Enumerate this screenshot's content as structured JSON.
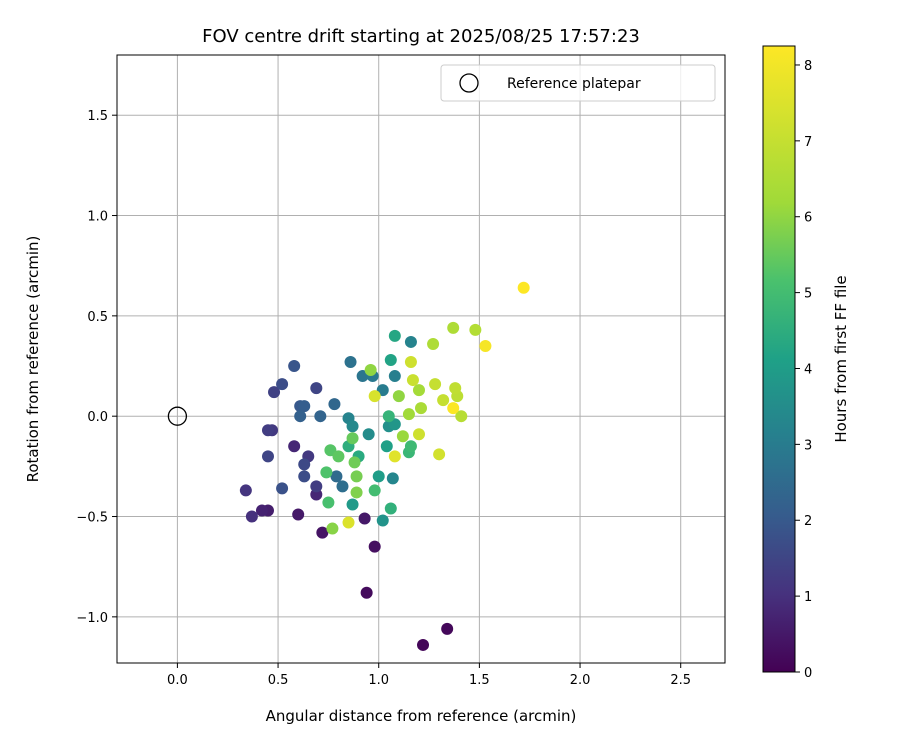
{
  "chart_data": {
    "type": "scatter",
    "title": "FOV centre drift starting at 2025/08/25 17:57:23",
    "xlabel": "Angular distance from reference (arcmin)",
    "ylabel": "Rotation from reference (arcmin)",
    "xlim": [
      -0.3,
      2.72
    ],
    "ylim": [
      -1.23,
      1.8
    ],
    "xticks": [
      0.0,
      0.5,
      1.0,
      1.5,
      2.0,
      2.5
    ],
    "xtick_labels": [
      "0.0",
      "0.5",
      "1.0",
      "1.5",
      "2.0",
      "2.5"
    ],
    "yticks": [
      -1.0,
      -0.5,
      0.0,
      0.5,
      1.0,
      1.5
    ],
    "ytick_labels": [
      "−1.0",
      "−0.5",
      "0.0",
      "0.5",
      "1.0",
      "1.5"
    ],
    "grid": true,
    "legend": {
      "position": "top-right",
      "entries": [
        "Reference platepar"
      ]
    },
    "reference_point": {
      "x": 0.0,
      "y": 0.0,
      "marker": "open-circle"
    },
    "colorbar": {
      "label": "Hours from first FF file",
      "min": 0,
      "max": 8.25,
      "colormap": "viridis",
      "ticks": [
        0,
        1,
        2,
        3,
        4,
        5,
        6,
        7,
        8
      ],
      "tick_labels": [
        "0",
        "1",
        "2",
        "3",
        "4",
        "5",
        "6",
        "7",
        "8"
      ]
    },
    "points": [
      {
        "x": 1.22,
        "y": -1.14,
        "h": 0.1
      },
      {
        "x": 1.34,
        "y": -1.06,
        "h": 0.15
      },
      {
        "x": 0.94,
        "y": -0.88,
        "h": 0.2
      },
      {
        "x": 0.98,
        "y": -0.65,
        "h": 0.3
      },
      {
        "x": 0.72,
        "y": -0.58,
        "h": 0.4
      },
      {
        "x": 0.93,
        "y": -0.51,
        "h": 0.5
      },
      {
        "x": 0.6,
        "y": -0.49,
        "h": 0.5
      },
      {
        "x": 0.45,
        "y": -0.47,
        "h": 0.6
      },
      {
        "x": 0.42,
        "y": -0.47,
        "h": 0.7
      },
      {
        "x": 0.69,
        "y": -0.39,
        "h": 0.8
      },
      {
        "x": 0.58,
        "y": -0.15,
        "h": 0.8
      },
      {
        "x": 0.37,
        "y": -0.5,
        "h": 1.0
      },
      {
        "x": 0.34,
        "y": -0.37,
        "h": 1.1
      },
      {
        "x": 0.47,
        "y": -0.07,
        "h": 1.2
      },
      {
        "x": 0.45,
        "y": -0.07,
        "h": 1.3
      },
      {
        "x": 0.48,
        "y": 0.12,
        "h": 1.4
      },
      {
        "x": 0.69,
        "y": 0.14,
        "h": 1.5
      },
      {
        "x": 0.69,
        "y": -0.35,
        "h": 1.3
      },
      {
        "x": 0.65,
        "y": -0.2,
        "h": 1.2
      },
      {
        "x": 0.45,
        "y": -0.2,
        "h": 1.5
      },
      {
        "x": 0.63,
        "y": -0.24,
        "h": 1.6
      },
      {
        "x": 0.63,
        "y": -0.3,
        "h": 1.7
      },
      {
        "x": 0.52,
        "y": -0.36,
        "h": 1.8
      },
      {
        "x": 0.52,
        "y": 0.16,
        "h": 1.7
      },
      {
        "x": 0.58,
        "y": 0.25,
        "h": 1.9
      },
      {
        "x": 0.61,
        "y": 0.05,
        "h": 2.0
      },
      {
        "x": 0.63,
        "y": 0.05,
        "h": 2.1
      },
      {
        "x": 0.61,
        "y": 0.0,
        "h": 2.2
      },
      {
        "x": 0.71,
        "y": 0.0,
        "h": 2.3
      },
      {
        "x": 0.78,
        "y": 0.06,
        "h": 2.4
      },
      {
        "x": 0.79,
        "y": -0.3,
        "h": 2.5
      },
      {
        "x": 0.82,
        "y": -0.35,
        "h": 2.6
      },
      {
        "x": 0.86,
        "y": 0.27,
        "h": 2.7
      },
      {
        "x": 0.92,
        "y": 0.2,
        "h": 2.8
      },
      {
        "x": 0.97,
        "y": 0.2,
        "h": 2.9
      },
      {
        "x": 1.02,
        "y": 0.13,
        "h": 3.0
      },
      {
        "x": 1.08,
        "y": 0.2,
        "h": 3.1
      },
      {
        "x": 1.16,
        "y": 0.37,
        "h": 3.2
      },
      {
        "x": 0.85,
        "y": -0.01,
        "h": 3.2
      },
      {
        "x": 1.07,
        "y": -0.31,
        "h": 3.3
      },
      {
        "x": 0.87,
        "y": -0.05,
        "h": 3.4
      },
      {
        "x": 0.95,
        "y": -0.09,
        "h": 3.5
      },
      {
        "x": 1.05,
        "y": -0.05,
        "h": 3.6
      },
      {
        "x": 1.02,
        "y": -0.52,
        "h": 3.7
      },
      {
        "x": 1.08,
        "y": -0.04,
        "h": 3.8
      },
      {
        "x": 0.87,
        "y": -0.44,
        "h": 3.9
      },
      {
        "x": 1.0,
        "y": -0.3,
        "h": 4.0
      },
      {
        "x": 1.04,
        "y": -0.15,
        "h": 4.1
      },
      {
        "x": 1.06,
        "y": 0.28,
        "h": 4.2
      },
      {
        "x": 1.08,
        "y": 0.4,
        "h": 4.3
      },
      {
        "x": 0.9,
        "y": -0.2,
        "h": 4.4
      },
      {
        "x": 0.85,
        "y": -0.15,
        "h": 4.5
      },
      {
        "x": 1.06,
        "y": -0.46,
        "h": 4.6
      },
      {
        "x": 1.05,
        "y": 0.0,
        "h": 4.7
      },
      {
        "x": 1.15,
        "y": -0.18,
        "h": 4.8
      },
      {
        "x": 1.16,
        "y": -0.15,
        "h": 4.9
      },
      {
        "x": 0.98,
        "y": -0.37,
        "h": 5.0
      },
      {
        "x": 0.75,
        "y": -0.43,
        "h": 5.1
      },
      {
        "x": 0.74,
        "y": -0.28,
        "h": 5.2
      },
      {
        "x": 0.76,
        "y": -0.17,
        "h": 5.3
      },
      {
        "x": 0.8,
        "y": -0.2,
        "h": 5.4
      },
      {
        "x": 0.87,
        "y": -0.11,
        "h": 5.5
      },
      {
        "x": 0.88,
        "y": -0.23,
        "h": 5.6
      },
      {
        "x": 0.89,
        "y": -0.3,
        "h": 5.7
      },
      {
        "x": 0.89,
        "y": -0.38,
        "h": 5.8
      },
      {
        "x": 0.77,
        "y": -0.56,
        "h": 5.9
      },
      {
        "x": 0.96,
        "y": 0.23,
        "h": 6.0
      },
      {
        "x": 1.1,
        "y": 0.1,
        "h": 6.0
      },
      {
        "x": 1.12,
        "y": -0.1,
        "h": 6.1
      },
      {
        "x": 1.15,
        "y": 0.01,
        "h": 6.2
      },
      {
        "x": 1.2,
        "y": 0.13,
        "h": 6.3
      },
      {
        "x": 1.21,
        "y": 0.04,
        "h": 6.4
      },
      {
        "x": 1.27,
        "y": 0.36,
        "h": 6.5
      },
      {
        "x": 1.37,
        "y": 0.44,
        "h": 6.5
      },
      {
        "x": 1.48,
        "y": 0.43,
        "h": 6.6
      },
      {
        "x": 1.41,
        "y": 0.0,
        "h": 6.7
      },
      {
        "x": 1.39,
        "y": 0.1,
        "h": 6.8
      },
      {
        "x": 1.38,
        "y": 0.14,
        "h": 6.9
      },
      {
        "x": 1.28,
        "y": 0.16,
        "h": 7.0
      },
      {
        "x": 1.32,
        "y": 0.08,
        "h": 7.0
      },
      {
        "x": 1.17,
        "y": 0.18,
        "h": 7.1
      },
      {
        "x": 1.16,
        "y": 0.27,
        "h": 7.2
      },
      {
        "x": 1.2,
        "y": -0.09,
        "h": 7.2
      },
      {
        "x": 1.3,
        "y": -0.19,
        "h": 7.3
      },
      {
        "x": 0.98,
        "y": 0.1,
        "h": 7.4
      },
      {
        "x": 0.85,
        "y": -0.53,
        "h": 7.5
      },
      {
        "x": 1.08,
        "y": -0.2,
        "h": 7.6
      },
      {
        "x": 1.53,
        "y": 0.35,
        "h": 8.1
      },
      {
        "x": 1.37,
        "y": 0.04,
        "h": 8.2
      },
      {
        "x": 1.72,
        "y": 0.64,
        "h": 8.25
      }
    ]
  }
}
